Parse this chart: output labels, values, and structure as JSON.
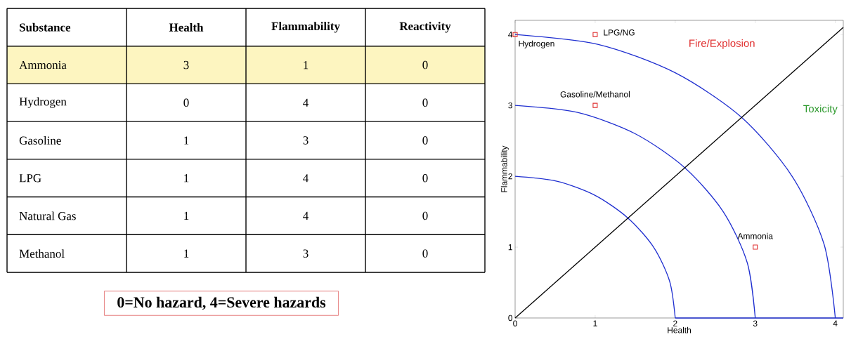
{
  "chart_data": [
    {
      "type": "heatmap",
      "ylabel": "Substance",
      "categories": [
        "Health",
        "Flammability",
        "Reactivity"
      ],
      "y_categories": [
        "Ammonia",
        "Hydrogen",
        "Gasoline",
        "LPG",
        "Natural Gas",
        "Methanol"
      ],
      "cells": [
        [
          3,
          1,
          0
        ],
        [
          0,
          4,
          0
        ],
        [
          1,
          3,
          0
        ],
        [
          1,
          4,
          0
        ],
        [
          1,
          4,
          0
        ],
        [
          1,
          3,
          0
        ]
      ],
      "data_labels": true,
      "bands": [
        {
          "axis": "y",
          "from": "Ammonia",
          "to": "Ammonia",
          "color": "#fdf5c0"
        }
      ],
      "annotations": [
        "0=No hazard, 4=Severe hazards"
      ]
    },
    {
      "type": "scatter",
      "xlabel": "Health",
      "ylabel": "Flammability",
      "xlim": [
        0,
        4.1
      ],
      "ylim": [
        0,
        4.2
      ],
      "xticks": [
        0,
        1,
        2,
        3,
        4
      ],
      "yticks": [
        0,
        1,
        2,
        3,
        4
      ],
      "grid": false,
      "series": [
        {
          "type": "line",
          "color": "#1f2fd0",
          "x": [
            0,
            0.52,
            1,
            1.41,
            1.73,
            1.93,
            2
          ],
          "values": [
            2,
            1.93,
            1.73,
            1.41,
            1,
            0.52,
            0
          ]
        },
        {
          "type": "line",
          "color": "#1f2fd0",
          "x": [
            0,
            0.78,
            1.5,
            2.12,
            2.6,
            2.9,
            3
          ],
          "values": [
            3,
            2.9,
            2.6,
            2.12,
            1.5,
            0.78,
            0
          ]
        },
        {
          "type": "line",
          "color": "#1f2fd0",
          "x": [
            0,
            1.04,
            2,
            2.83,
            3.46,
            3.86,
            4
          ],
          "values": [
            4,
            3.86,
            3.46,
            2.83,
            2,
            1.04,
            0
          ]
        },
        {
          "type": "line",
          "color": "#1f2fd0",
          "x": [
            2,
            4.1
          ],
          "values": [
            0,
            0
          ]
        },
        {
          "type": "line",
          "color": "#000000",
          "x": [
            0,
            4.1
          ],
          "values": [
            0,
            4.1
          ]
        },
        {
          "type": "scatter",
          "marker": "square",
          "color": "#e03030",
          "x": [
            0,
            1,
            1,
            3
          ],
          "values": [
            4,
            4,
            3,
            1
          ]
        }
      ],
      "annotations": [
        {
          "text": "Hydrogen",
          "x": 0,
          "y": 4
        },
        {
          "text": "LPG/NG",
          "x": 1,
          "y": 4
        },
        {
          "text": "Gasoline/Methanol",
          "x": 1,
          "y": 3
        },
        {
          "text": "Ammonia",
          "x": 3,
          "y": 1
        },
        "Fire/Explosion",
        "Toxicity"
      ]
    }
  ]
}
